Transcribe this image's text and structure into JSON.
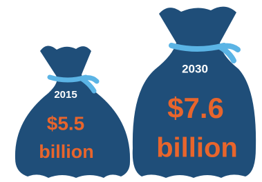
{
  "bags": [
    {
      "year": "2015",
      "amount": "$5.5",
      "unit": "billion"
    },
    {
      "year": "2030",
      "amount": "$7.6",
      "unit": "billion"
    }
  ]
}
